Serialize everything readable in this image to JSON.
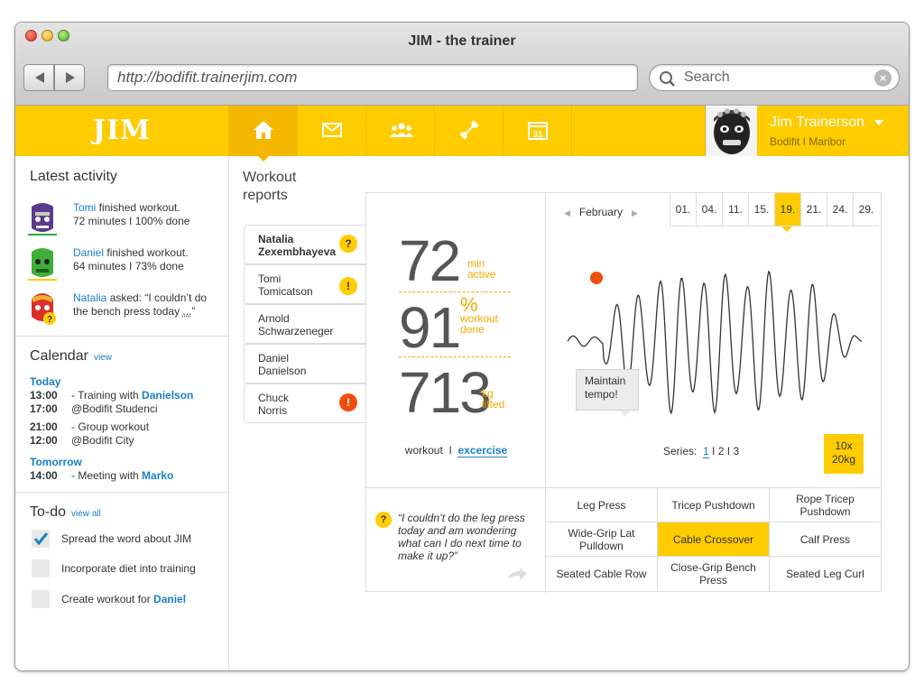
{
  "window": {
    "title": "JIM - the trainer"
  },
  "browser": {
    "url": "http://bodifit.trainerjim.com",
    "search_placeholder": "Search"
  },
  "app": {
    "logo": "JIM",
    "tabs": [
      {
        "name": "home",
        "icon": "home-icon",
        "active": true
      },
      {
        "name": "messages",
        "icon": "mail-icon"
      },
      {
        "name": "clients",
        "icon": "group-icon"
      },
      {
        "name": "workouts",
        "icon": "dumbbell-icon"
      },
      {
        "name": "calendar",
        "icon": "calendar-icon",
        "label": "31"
      }
    ],
    "user": {
      "name": "Jim Trainerson",
      "sub": "Bodifit I Maribor"
    }
  },
  "activity": {
    "title": "Latest activity",
    "items": [
      {
        "name": "Tomi",
        "text1": " finished workout.",
        "text2": "72 minutes I 100% done",
        "accent": "#2eaa3c"
      },
      {
        "name": "Daniel",
        "text1": " finished workout.",
        "text2": "64 minutes I 73% done",
        "accent": "#ffcc00"
      },
      {
        "name": "Natalia",
        "text1": " asked: “I couldn’t do",
        "text2a": "the bench press today ",
        "text2b": "...",
        "text2c": "”"
      }
    ]
  },
  "calendar": {
    "title": "Calendar",
    "link": "view",
    "today": "Today",
    "tomorrow": "Tomorrow",
    "events": [
      {
        "time": "13:00",
        "text": "- Training with ",
        "who": "Danielson"
      },
      {
        "time": "17:00",
        "text": "@Bodifit Studenci"
      },
      {
        "time": "21:00",
        "text": "- Group workout"
      },
      {
        "time": "12:00",
        "text": "@Bodifit City"
      },
      {
        "time": "14:00",
        "text": "- Meeting with ",
        "who": "Marko"
      }
    ]
  },
  "todo": {
    "title": "To-do",
    "link": "view all",
    "items": [
      {
        "text": "Spread the word about JIM",
        "done": true
      },
      {
        "text": "Incorporate diet into training",
        "done": false
      },
      {
        "text": "Create workout for ",
        "who": "Daniel",
        "done": false
      }
    ]
  },
  "reports": {
    "title_line1": "Workout",
    "title_line2": "reports",
    "people": [
      {
        "first": "Natalia",
        "last": "Zexembhayeva",
        "badge": "?",
        "badge_color": "#ffcc00",
        "active": true
      },
      {
        "first": "Tomi",
        "last": "Tomicatson",
        "badge": "!",
        "badge_color": "#ffcc00"
      },
      {
        "first": "Arnold",
        "last": "Schwarzeneger"
      },
      {
        "first": "Daniel",
        "last": "Danielson"
      },
      {
        "first": "Chuck",
        "last": "Norris",
        "badge": "!",
        "badge_color": "#f04e0f"
      }
    ]
  },
  "stats": {
    "minutes": {
      "value": "72",
      "unit1": "min",
      "unit2": "active"
    },
    "percent": {
      "value": "91",
      "unit1": "%",
      "unit2": "workout",
      "unit3": "done"
    },
    "kg": {
      "value": "713",
      "unit1": "kg",
      "unit2": "lifted"
    },
    "link_prefix": "workout  I  ",
    "link": "excercise"
  },
  "chart": {
    "month": "February",
    "dates": [
      "01.",
      "04.",
      "11.",
      "15.",
      "19.",
      "21.",
      "24.",
      "29."
    ],
    "selected_date": "19.",
    "series_label": "Series:",
    "series": [
      "1",
      "2",
      "3"
    ],
    "selected_series": "1",
    "weight_line1": "10x",
    "weight_line2": "20kg",
    "tooltip_line1": "Maintain",
    "tooltip_line2": "tempo!",
    "marker_color": "#f04e0f"
  },
  "comment": {
    "text": "“I couldn’t do the leg press today and am wondering what can I do next time to make it up?”"
  },
  "exercises": [
    [
      "Leg Press",
      "Tricep Pushdown",
      "Rope Tricep Pushdown"
    ],
    [
      "Wide-Grip Lat Pulldown",
      "Cable Crossover",
      "Calf Press"
    ],
    [
      "Seated Cable Row",
      "Close-Grip Bench Press",
      "Seated Leg Curl"
    ]
  ],
  "selected_exercise": "Cable Crossover"
}
